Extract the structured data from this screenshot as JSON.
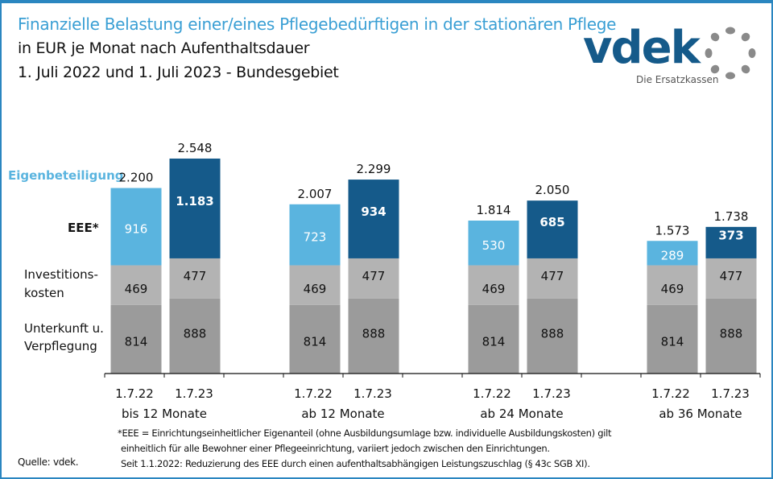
{
  "header": {
    "title": "Finanzielle Belastung einer/eines Pflegebedürftigen in der stationären Pflege",
    "subtitle1": "in EUR je Monat nach Aufenthaltsdauer",
    "subtitle2": "1. Juli 2022 und 1. Juli 2023 - Bundesgebiet"
  },
  "logo": {
    "name": "vdek",
    "tagline": "Die Ersatzkassen"
  },
  "colors": {
    "eee_2022": "#5ab4df",
    "eee_2023": "#155a8a",
    "invest": "#b3b3b3",
    "unterkunft": "#9b9b9b",
    "title": "#3a9fd4",
    "border": "#2a86c0"
  },
  "legend": {
    "eigenbeteiligung": "Eigenbeteiligung",
    "eee": "EEE*",
    "investitionskosten_1": "Investitions-",
    "investitionskosten_2": "kosten",
    "unterkunft_1": "Unterkunft u.",
    "unterkunft_2": "Verpflegung"
  },
  "chart_data": {
    "type": "bar",
    "stacked": true,
    "title": "Finanzielle Belastung einer/eines Pflegebedürftigen in der stationären Pflege",
    "subtitle": "in EUR je Monat nach Aufenthaltsdauer; 1. Juli 2022 und 1. Juli 2023 - Bundesgebiet",
    "groups": [
      "bis 12 Monate",
      "ab 12 Monate",
      "ab 24 Monate",
      "ab 36 Monate"
    ],
    "dates": [
      "1.7.22",
      "1.7.23"
    ],
    "bars": [
      {
        "group": "bis 12 Monate",
        "date": "1.7.22",
        "unterkunft": 814,
        "invest": 469,
        "eee": 916,
        "total": "2.200"
      },
      {
        "group": "bis 12 Monate",
        "date": "1.7.23",
        "unterkunft": 888,
        "invest": 477,
        "eee": 1183,
        "eee_label": "1.183",
        "total": "2.548"
      },
      {
        "group": "ab 12 Monate",
        "date": "1.7.22",
        "unterkunft": 814,
        "invest": 469,
        "eee": 723,
        "total": "2.007"
      },
      {
        "group": "ab 12 Monate",
        "date": "1.7.23",
        "unterkunft": 888,
        "invest": 477,
        "eee": 934,
        "total": "2.299"
      },
      {
        "group": "ab 24 Monate",
        "date": "1.7.22",
        "unterkunft": 814,
        "invest": 469,
        "eee": 530,
        "total": "1.814"
      },
      {
        "group": "ab 24 Monate",
        "date": "1.7.23",
        "unterkunft": 888,
        "invest": 477,
        "eee": 685,
        "total": "2.050"
      },
      {
        "group": "ab 36 Monate",
        "date": "1.7.22",
        "unterkunft": 814,
        "invest": 469,
        "eee": 289,
        "total": "1.573"
      },
      {
        "group": "ab 36 Monate",
        "date": "1.7.23",
        "unterkunft": 888,
        "invest": 477,
        "eee": 373,
        "total": "1.738"
      }
    ],
    "series": [
      {
        "name": "Unterkunft u. Verpflegung"
      },
      {
        "name": "Investitionskosten"
      },
      {
        "name": "EEE*"
      }
    ],
    "xlabel": "",
    "ylabel": "",
    "grid": false
  },
  "footnotes": {
    "line1": "*EEE = Einrichtungseinheitlicher  Eigenanteil (ohne Ausbildungsumlage bzw. individuelle Ausbildungskosten) gilt",
    "line2": "einheitlich für alle Bewohner einer Pflegeeinrichtung, variiert jedoch zwischen den Einrichtungen.",
    "line3": "Seit 1.1.2022: Reduzierung des EEE durch einen aufenthaltsabhängigen Leistungszuschlag (§ 43c SGB XI).",
    "source": "Quelle: vdek."
  }
}
